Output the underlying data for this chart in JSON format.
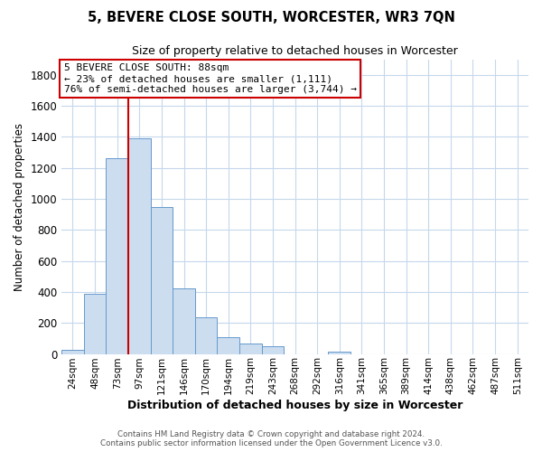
{
  "title": "5, BEVERE CLOSE SOUTH, WORCESTER, WR3 7QN",
  "subtitle": "Size of property relative to detached houses in Worcester",
  "xlabel": "Distribution of detached houses by size in Worcester",
  "ylabel": "Number of detached properties",
  "bar_labels": [
    "24sqm",
    "48sqm",
    "73sqm",
    "97sqm",
    "121sqm",
    "146sqm",
    "170sqm",
    "194sqm",
    "219sqm",
    "243sqm",
    "268sqm",
    "292sqm",
    "316sqm",
    "341sqm",
    "365sqm",
    "389sqm",
    "414sqm",
    "438sqm",
    "462sqm",
    "487sqm",
    "511sqm"
  ],
  "bar_values": [
    25,
    390,
    1260,
    1390,
    950,
    420,
    235,
    110,
    65,
    50,
    0,
    0,
    15,
    0,
    0,
    0,
    0,
    0,
    0,
    0,
    0
  ],
  "bar_color": "#ccddf0",
  "bar_edge_color": "#6699cc",
  "vline_index": 2.5,
  "vline_color": "#cc0000",
  "ylim": [
    0,
    1900
  ],
  "yticks": [
    0,
    200,
    400,
    600,
    800,
    1000,
    1200,
    1400,
    1600,
    1800
  ],
  "annotation_box_text": "5 BEVERE CLOSE SOUTH: 88sqm\n← 23% of detached houses are smaller (1,111)\n76% of semi-detached houses are larger (3,744) →",
  "annotation_box_color": "#cc0000",
  "footer_line1": "Contains HM Land Registry data © Crown copyright and database right 2024.",
  "footer_line2": "Contains public sector information licensed under the Open Government Licence v3.0.",
  "background_color": "#ffffff",
  "grid_color": "#c5d8ec"
}
